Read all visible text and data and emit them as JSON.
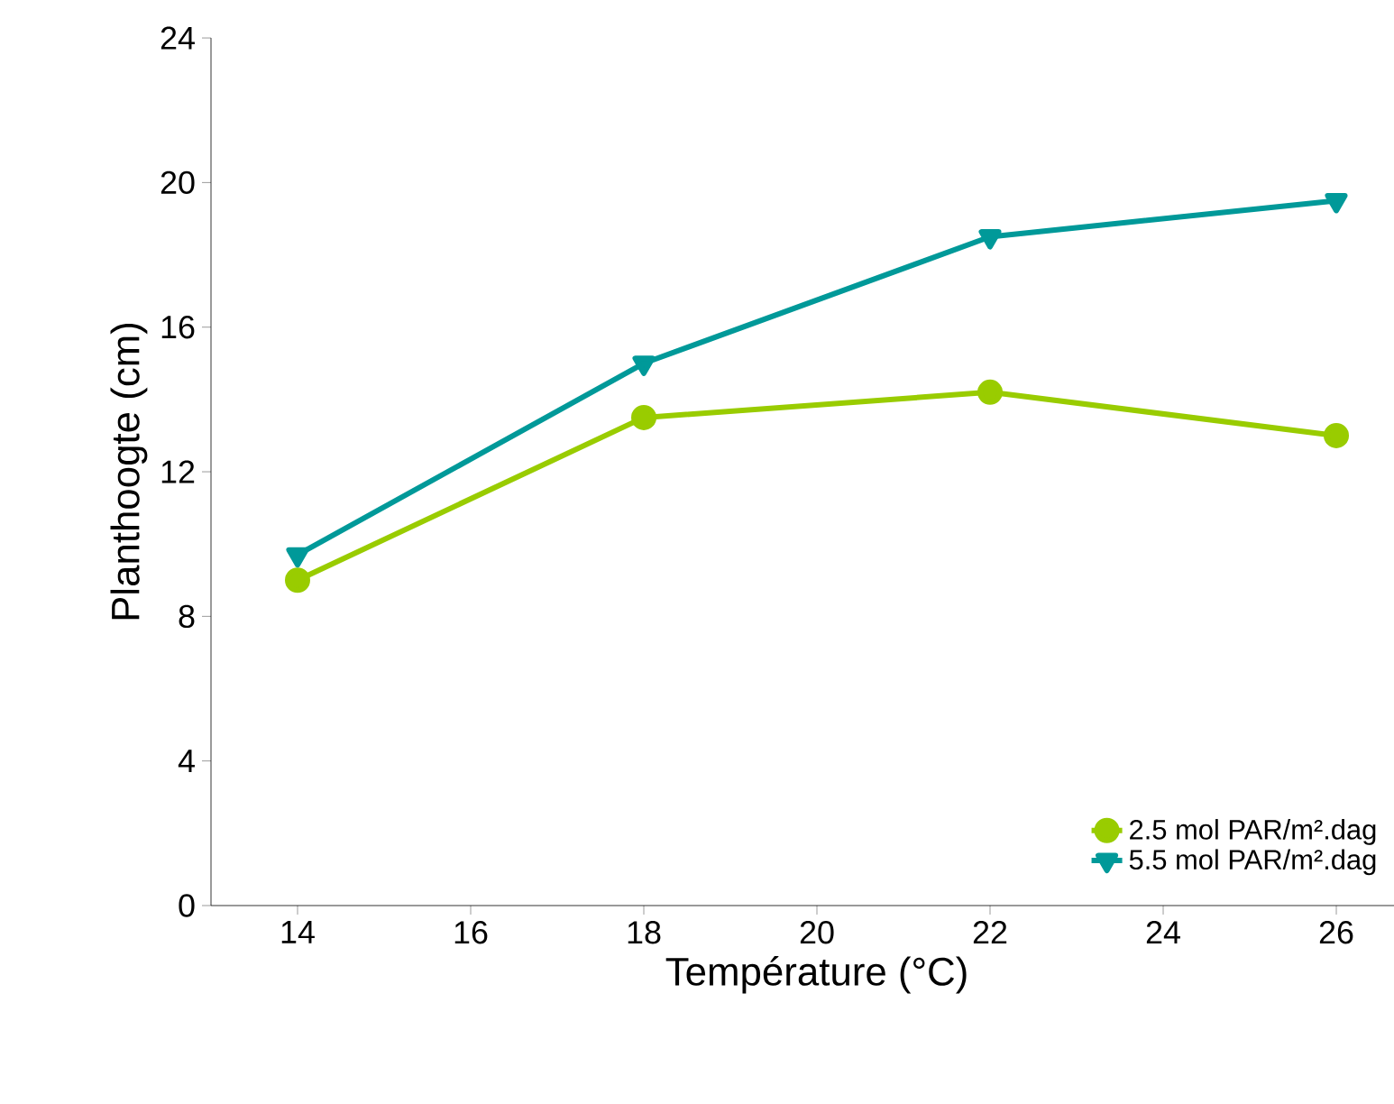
{
  "chart_data": {
    "type": "line",
    "xlabel": "Température (°C)",
    "ylabel": "Planthoogte (cm)",
    "x": [
      14,
      18,
      22,
      26
    ],
    "series": [
      {
        "name": "2.5 mol PAR/m².dag",
        "color": "#99cc00",
        "marker": "circle",
        "values": [
          9,
          13.5,
          14.2,
          13.0
        ]
      },
      {
        "name": "5.5 mol PAR/m².dag",
        "color": "#009999",
        "marker": "triangle",
        "values": [
          9.7,
          15,
          18.5,
          19.5
        ]
      }
    ],
    "xlim": [
      13,
      27
    ],
    "ylim": [
      0,
      24
    ],
    "xticks": [
      14,
      16,
      18,
      20,
      22,
      24,
      26
    ],
    "yticks": [
      0,
      4,
      8,
      12,
      16,
      20,
      24
    ],
    "legend": "bottom right",
    "grid": false
  }
}
